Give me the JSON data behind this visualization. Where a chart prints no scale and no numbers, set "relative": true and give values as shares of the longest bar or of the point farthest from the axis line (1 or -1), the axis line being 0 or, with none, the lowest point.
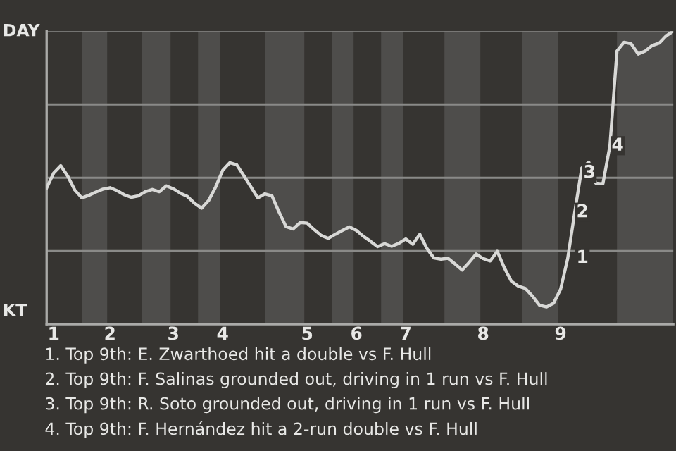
{
  "chart_data": {
    "type": "line",
    "relative": true,
    "categories": [
      null,
      "1",
      null,
      null,
      null,
      null,
      null,
      null,
      null,
      "2",
      null,
      null,
      null,
      null,
      null,
      null,
      null,
      null,
      "3",
      null,
      null,
      null,
      null,
      null,
      null,
      "4",
      null,
      null,
      null,
      null,
      null,
      null,
      null,
      null,
      null,
      null,
      null,
      "5",
      null,
      null,
      null,
      null,
      null,
      null,
      "6",
      null,
      null,
      null,
      null,
      null,
      null,
      "7",
      null,
      null,
      null,
      null,
      null,
      null,
      null,
      null,
      null,
      null,
      "8",
      null,
      null,
      null,
      null,
      null,
      null,
      null,
      null,
      null,
      null,
      "9",
      null,
      null,
      null,
      null,
      null,
      null,
      null,
      null,
      null,
      null,
      null,
      null,
      null,
      null,
      null,
      null
    ],
    "series": [
      {
        "color": "#d8d8d6",
        "values": [
          0.465,
          0.516,
          0.541,
          0.505,
          0.458,
          0.431,
          0.44,
          0.451,
          0.461,
          0.466,
          0.456,
          0.442,
          0.433,
          0.438,
          0.452,
          0.46,
          0.452,
          0.472,
          0.462,
          0.447,
          0.436,
          0.413,
          0.396,
          0.422,
          0.468,
          0.525,
          0.551,
          0.544,
          0.507,
          0.469,
          0.431,
          0.445,
          0.438,
          0.383,
          0.333,
          0.325,
          0.347,
          0.345,
          0.323,
          0.303,
          0.293,
          0.307,
          0.32,
          0.332,
          0.32,
          0.3,
          0.283,
          0.265,
          0.275,
          0.266,
          0.276,
          0.291,
          0.273,
          0.307,
          0.259,
          0.226,
          0.222,
          0.225,
          0.206,
          0.185,
          0.211,
          0.24,
          0.224,
          0.216,
          0.249,
          0.193,
          0.147,
          0.13,
          0.122,
          0.096,
          0.065,
          0.059,
          0.072,
          0.12,
          0.224,
          0.382,
          0.533,
          0.553,
          0.481,
          0.479,
          0.609,
          0.932,
          0.962,
          0.957,
          0.922,
          0.932,
          0.951,
          0.959,
          0.984,
          1.0
        ]
      }
    ],
    "ref_lines": [
      {
        "axis": "y",
        "value": 0.25,
        "color": "#8a8a88"
      },
      {
        "axis": "y",
        "value": 0.5,
        "color": "#8a8a88"
      },
      {
        "axis": "y",
        "value": 0.75,
        "color": "#8a8a88"
      },
      {
        "axis": "y",
        "value": 1,
        "color": "#8a8a88"
      }
    ],
    "annotations": [
      "DAY",
      "KT",
      {
        "text": "1",
        "y": 0.226
      },
      {
        "text": "2",
        "y": 0.382
      },
      {
        "text": "3",
        "y": 0.516
      },
      {
        "text": "4",
        "y": 0.609
      },
      "1. Top 9th: E. Zwarthoed hit a double vs F. Hull",
      "2. Top 9th: F. Salinas grounded out, driving in 1 run vs F. Hull",
      "3. Top 9th: R. Soto grounded out, driving in 1 run vs F. Hull",
      "4. Top 9th: F. Hernández hit a 2-run double vs F. Hull"
    ],
    "grid": false
  }
}
